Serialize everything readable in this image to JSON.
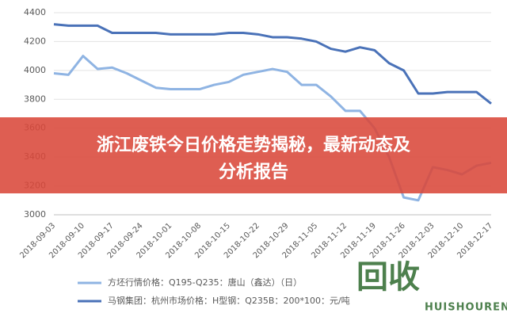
{
  "chart_data": {
    "type": "line",
    "categories": [
      "2018-09-03",
      null,
      "2018-09-10",
      null,
      "2018-09-17",
      null,
      "2018-09-24",
      null,
      "2018-10-01",
      null,
      "2018-10-08",
      null,
      "2018-10-15",
      null,
      "2018-10-22",
      null,
      "2018-10-29",
      null,
      "2018-11-05",
      null,
      "2018-11-12",
      null,
      "2018-11-19",
      null,
      "2018-11-26",
      null,
      "2018-12-03",
      null,
      "2018-12-10",
      null,
      "2018-12-17"
    ],
    "series": [
      {
        "name": "方坯行情价格：Q195-Q235：唐山（鑫达）（日）",
        "color": "#8fb4e3",
        "values": [
          3980,
          3970,
          4100,
          4010,
          4020,
          3980,
          3930,
          3880,
          3870,
          3870,
          3870,
          3900,
          3920,
          3970,
          3990,
          4010,
          3990,
          3900,
          3900,
          3820,
          3720,
          3720,
          3600,
          3400,
          3120,
          3100,
          3330,
          3310,
          3280,
          3340,
          3360
        ]
      },
      {
        "name": "马钢集团：杭州市场价格：H型钢：Q235B：200*100：元/吨",
        "color": "#4a72b8",
        "values": [
          4320,
          4310,
          4310,
          4310,
          4260,
          4260,
          4260,
          4260,
          4250,
          4250,
          4250,
          4250,
          4260,
          4260,
          4250,
          4230,
          4230,
          4220,
          4200,
          4150,
          4130,
          4160,
          4140,
          4050,
          4000,
          3840,
          3840,
          3850,
          3850,
          3850,
          3770
        ]
      }
    ],
    "ylim": [
      3000,
      4400
    ],
    "yticks": [
      3000,
      3200,
      3400,
      3600,
      3800,
      4000,
      4200,
      4400
    ],
    "grid": true
  },
  "banner": {
    "line1": "浙江废铁今日价格走势揭秘，最新动态及",
    "line2": "分析报告"
  },
  "watermark": {
    "logo": "回收",
    "brand": "HUISHOUREN"
  }
}
